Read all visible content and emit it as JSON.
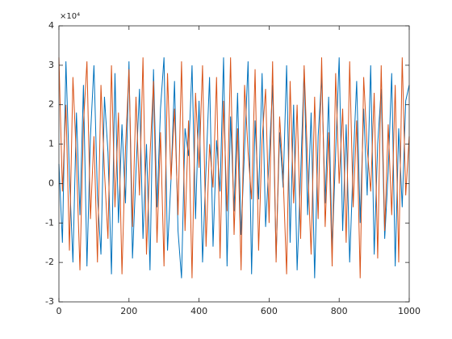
{
  "chart_data": {
    "type": "line",
    "exponent_label": "×10⁴",
    "x": [
      0,
      10,
      20,
      30,
      40,
      50,
      60,
      70,
      80,
      90,
      100,
      110,
      120,
      130,
      140,
      150,
      160,
      170,
      180,
      190,
      200,
      210,
      220,
      230,
      240,
      250,
      260,
      270,
      280,
      290,
      300,
      310,
      320,
      330,
      340,
      350,
      360,
      370,
      380,
      390,
      400,
      410,
      420,
      430,
      440,
      450,
      460,
      470,
      480,
      490,
      500,
      510,
      520,
      530,
      540,
      550,
      560,
      570,
      580,
      590,
      600,
      610,
      620,
      630,
      640,
      650,
      660,
      670,
      680,
      690,
      700,
      710,
      720,
      730,
      740,
      750,
      760,
      770,
      780,
      790,
      800,
      810,
      820,
      830,
      840,
      850,
      860,
      870,
      880,
      890,
      900,
      910,
      920,
      930,
      940,
      950,
      960,
      970,
      980,
      990,
      1000
    ],
    "series": [
      {
        "color": "#0072bd",
        "values": [
          5000,
          -15000,
          31000,
          2000,
          -20000,
          18000,
          -8000,
          25000,
          -21000,
          12000,
          30000,
          -3000,
          -18000,
          22000,
          8000,
          -23000,
          28000,
          -10000,
          15000,
          -5000,
          31000,
          -19000,
          3000,
          24000,
          -14000,
          10000,
          -22000,
          29000,
          -6000,
          19000,
          32000,
          -17000,
          1000,
          26000,
          -12000,
          -24000,
          14000,
          7000,
          30000,
          -9000,
          21000,
          -20000,
          4000,
          27000,
          -16000,
          11000,
          -2000,
          32000,
          -21000,
          17000,
          -7000,
          23000,
          -13000,
          9000,
          31000,
          -23000,
          16000,
          -4000,
          28000,
          -11000,
          6000,
          25000,
          -19000,
          13000,
          -1000,
          30000,
          -15000,
          20000,
          -22000,
          2000,
          29000,
          -8000,
          18000,
          -24000,
          12000,
          27000,
          -5000,
          22000,
          -17000,
          8000,
          32000,
          -12000,
          15000,
          -20000,
          5000,
          26000,
          -10000,
          19000,
          -3000,
          30000,
          -18000,
          10000,
          24000,
          -14000,
          3000,
          28000,
          -21000,
          14000,
          -6000,
          21000,
          25000
        ]
      },
      {
        "color": "#d95319",
        "values": [
          32000,
          -2000,
          20000,
          -17000,
          27000,
          6000,
          -22000,
          15000,
          31000,
          -9000,
          12000,
          -20000,
          25000,
          3000,
          -14000,
          30000,
          -6000,
          18000,
          -23000,
          9000,
          29000,
          -11000,
          22000,
          -3000,
          32000,
          -18000,
          7000,
          26000,
          -15000,
          13000,
          -21000,
          28000,
          1000,
          19000,
          -8000,
          31000,
          -12000,
          16000,
          -24000,
          23000,
          4000,
          30000,
          -16000,
          10000,
          -1000,
          27000,
          -19000,
          21000,
          -7000,
          32000,
          -13000,
          14000,
          -22000,
          25000,
          8000,
          -4000,
          29000,
          -17000,
          11000,
          24000,
          -10000,
          31000,
          -20000,
          17000,
          2000,
          -23000,
          26000,
          -5000,
          20000,
          -14000,
          30000,
          5000,
          -18000,
          22000,
          -9000,
          32000,
          -11000,
          13000,
          -21000,
          28000,
          0,
          19000,
          -15000,
          31000,
          -6000,
          16000,
          -24000,
          27000,
          9000,
          -2000,
          23000,
          -19000,
          30000,
          -12000,
          15000,
          -8000,
          25000,
          -20000,
          32000,
          -3000,
          12000
        ]
      }
    ],
    "xlim": [
      0,
      1000
    ],
    "xticks": [
      0,
      200,
      400,
      600,
      800,
      1000
    ],
    "ylim": [
      -30000,
      40000
    ],
    "yticks": [
      {
        "value": -30000,
        "label": "-3"
      },
      {
        "value": -20000,
        "label": "-2"
      },
      {
        "value": -10000,
        "label": "-1"
      },
      {
        "value": 0,
        "label": "0"
      },
      {
        "value": 10000,
        "label": "1"
      },
      {
        "value": 20000,
        "label": "2"
      },
      {
        "value": 30000,
        "label": "3"
      },
      {
        "value": 40000,
        "label": "4"
      }
    ],
    "grid": false
  }
}
